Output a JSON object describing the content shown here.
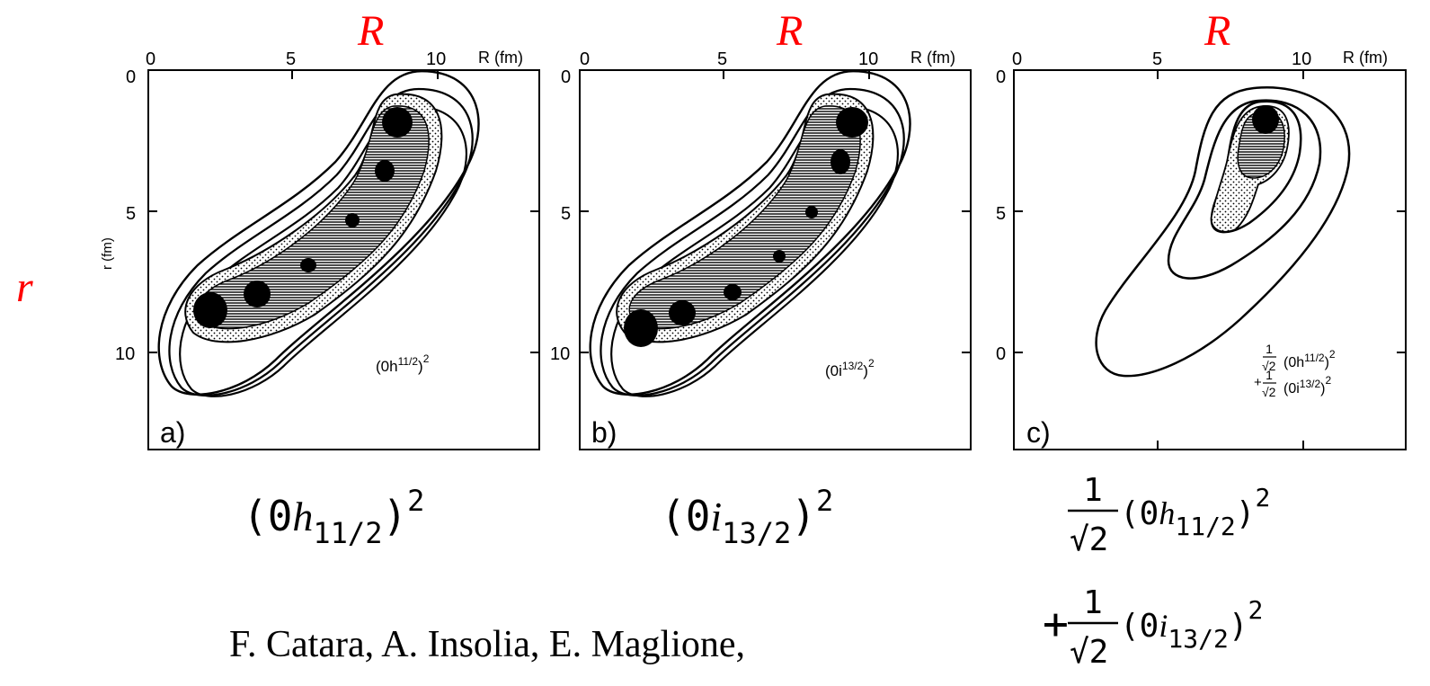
{
  "accent_color": "#ff0000",
  "axis_symbol_R": "R",
  "axis_symbol_r": "r",
  "panels": [
    {
      "letter": "a)",
      "x_axis_label": "R (fm)",
      "y_axis_label": "r (fm)",
      "x_ticks": [
        "0",
        "5",
        "10"
      ],
      "y_ticks": [
        "0",
        "5",
        "10"
      ],
      "inset_base": "(0h",
      "inset_sub": "11/2",
      "inset_close": ")",
      "inset_sup": "2",
      "caption_base": "(0",
      "caption_letter": "h",
      "caption_sub": "11/2",
      "caption_close": ")",
      "caption_sup": "2"
    },
    {
      "letter": "b)",
      "x_axis_label": "R (fm)",
      "x_ticks": [
        "0",
        "5",
        "10"
      ],
      "y_ticks": [
        "0",
        "5",
        "10"
      ],
      "inset_base": "(0i",
      "inset_sub": "13/2",
      "inset_close": ")",
      "inset_sup": "2",
      "caption_base": "(0",
      "caption_letter": "i",
      "caption_sub": "13/2",
      "caption_close": ")",
      "caption_sup": "2"
    },
    {
      "letter": "c)",
      "x_axis_label": "R (fm)",
      "x_ticks": [
        "0",
        "5",
        "10"
      ],
      "y_ticks": [
        "0",
        "5",
        "0"
      ],
      "inset_frac_num": "1",
      "inset_frac_den": "√2",
      "inset_line1": "(0h",
      "inset_line1_sub": "11/2",
      "inset_line1_close": ")",
      "inset_line1_sup": "2",
      "inset_plus": "+",
      "inset_line2": "(0i",
      "inset_line2_sub": "13/2",
      "inset_line2_close": ")",
      "inset_line2_sup": "2",
      "caption_frac_num": "1",
      "caption_frac_den": "√2",
      "caption_line1_base": "(0",
      "caption_line1_letter": "h",
      "caption_line1_sub": "11/2",
      "caption_line1_close": ")",
      "caption_line1_sup": "2",
      "caption_plus": "+",
      "caption_line2_base": "(0",
      "caption_line2_letter": "i",
      "caption_line2_sub": "13/2",
      "caption_line2_close": ")",
      "caption_line2_sup": "2"
    }
  ],
  "citation": "F. Catara, A. Insolia, E. Maglione,"
}
